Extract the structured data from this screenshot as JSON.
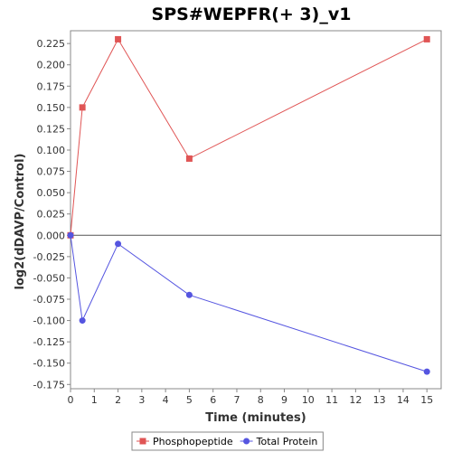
{
  "chart_data": {
    "type": "line",
    "title": "SPS#WEPFR(+ 3)_v1",
    "xlabel": "Time (minutes)",
    "ylabel": "log2(dDAVP/Control)",
    "xlim": [
      0,
      15.6
    ],
    "ylim": [
      -0.18,
      0.24
    ],
    "x_ticks": [
      0,
      1,
      2,
      3,
      4,
      5,
      6,
      7,
      8,
      9,
      10,
      11,
      12,
      13,
      14,
      15
    ],
    "y_ticks": [
      -0.175,
      -0.15,
      -0.125,
      -0.1,
      -0.075,
      -0.05,
      -0.025,
      0.0,
      0.025,
      0.05,
      0.075,
      0.1,
      0.125,
      0.15,
      0.175,
      0.2,
      0.225
    ],
    "y_tick_labels": [
      "-0.175",
      "-0.150",
      "-0.125",
      "-0.100",
      "-0.075",
      "-0.050",
      "-0.025",
      "0.000",
      "0.025",
      "0.050",
      "0.075",
      "0.100",
      "0.125",
      "0.150",
      "0.175",
      "0.200",
      "0.225"
    ],
    "grid": false,
    "legend_position": "bottom",
    "series": [
      {
        "name": "Phosphopeptide",
        "color": "#e05555",
        "marker": "square",
        "x": [
          0,
          0.5,
          2,
          5,
          15
        ],
        "y": [
          0.0,
          0.15,
          0.23,
          0.09,
          0.23
        ]
      },
      {
        "name": "Total Protein",
        "color": "#5555e0",
        "marker": "circle",
        "x": [
          0,
          0.5,
          2,
          5,
          15
        ],
        "y": [
          0.0,
          -0.1,
          -0.01,
          -0.07,
          -0.16
        ]
      }
    ]
  }
}
